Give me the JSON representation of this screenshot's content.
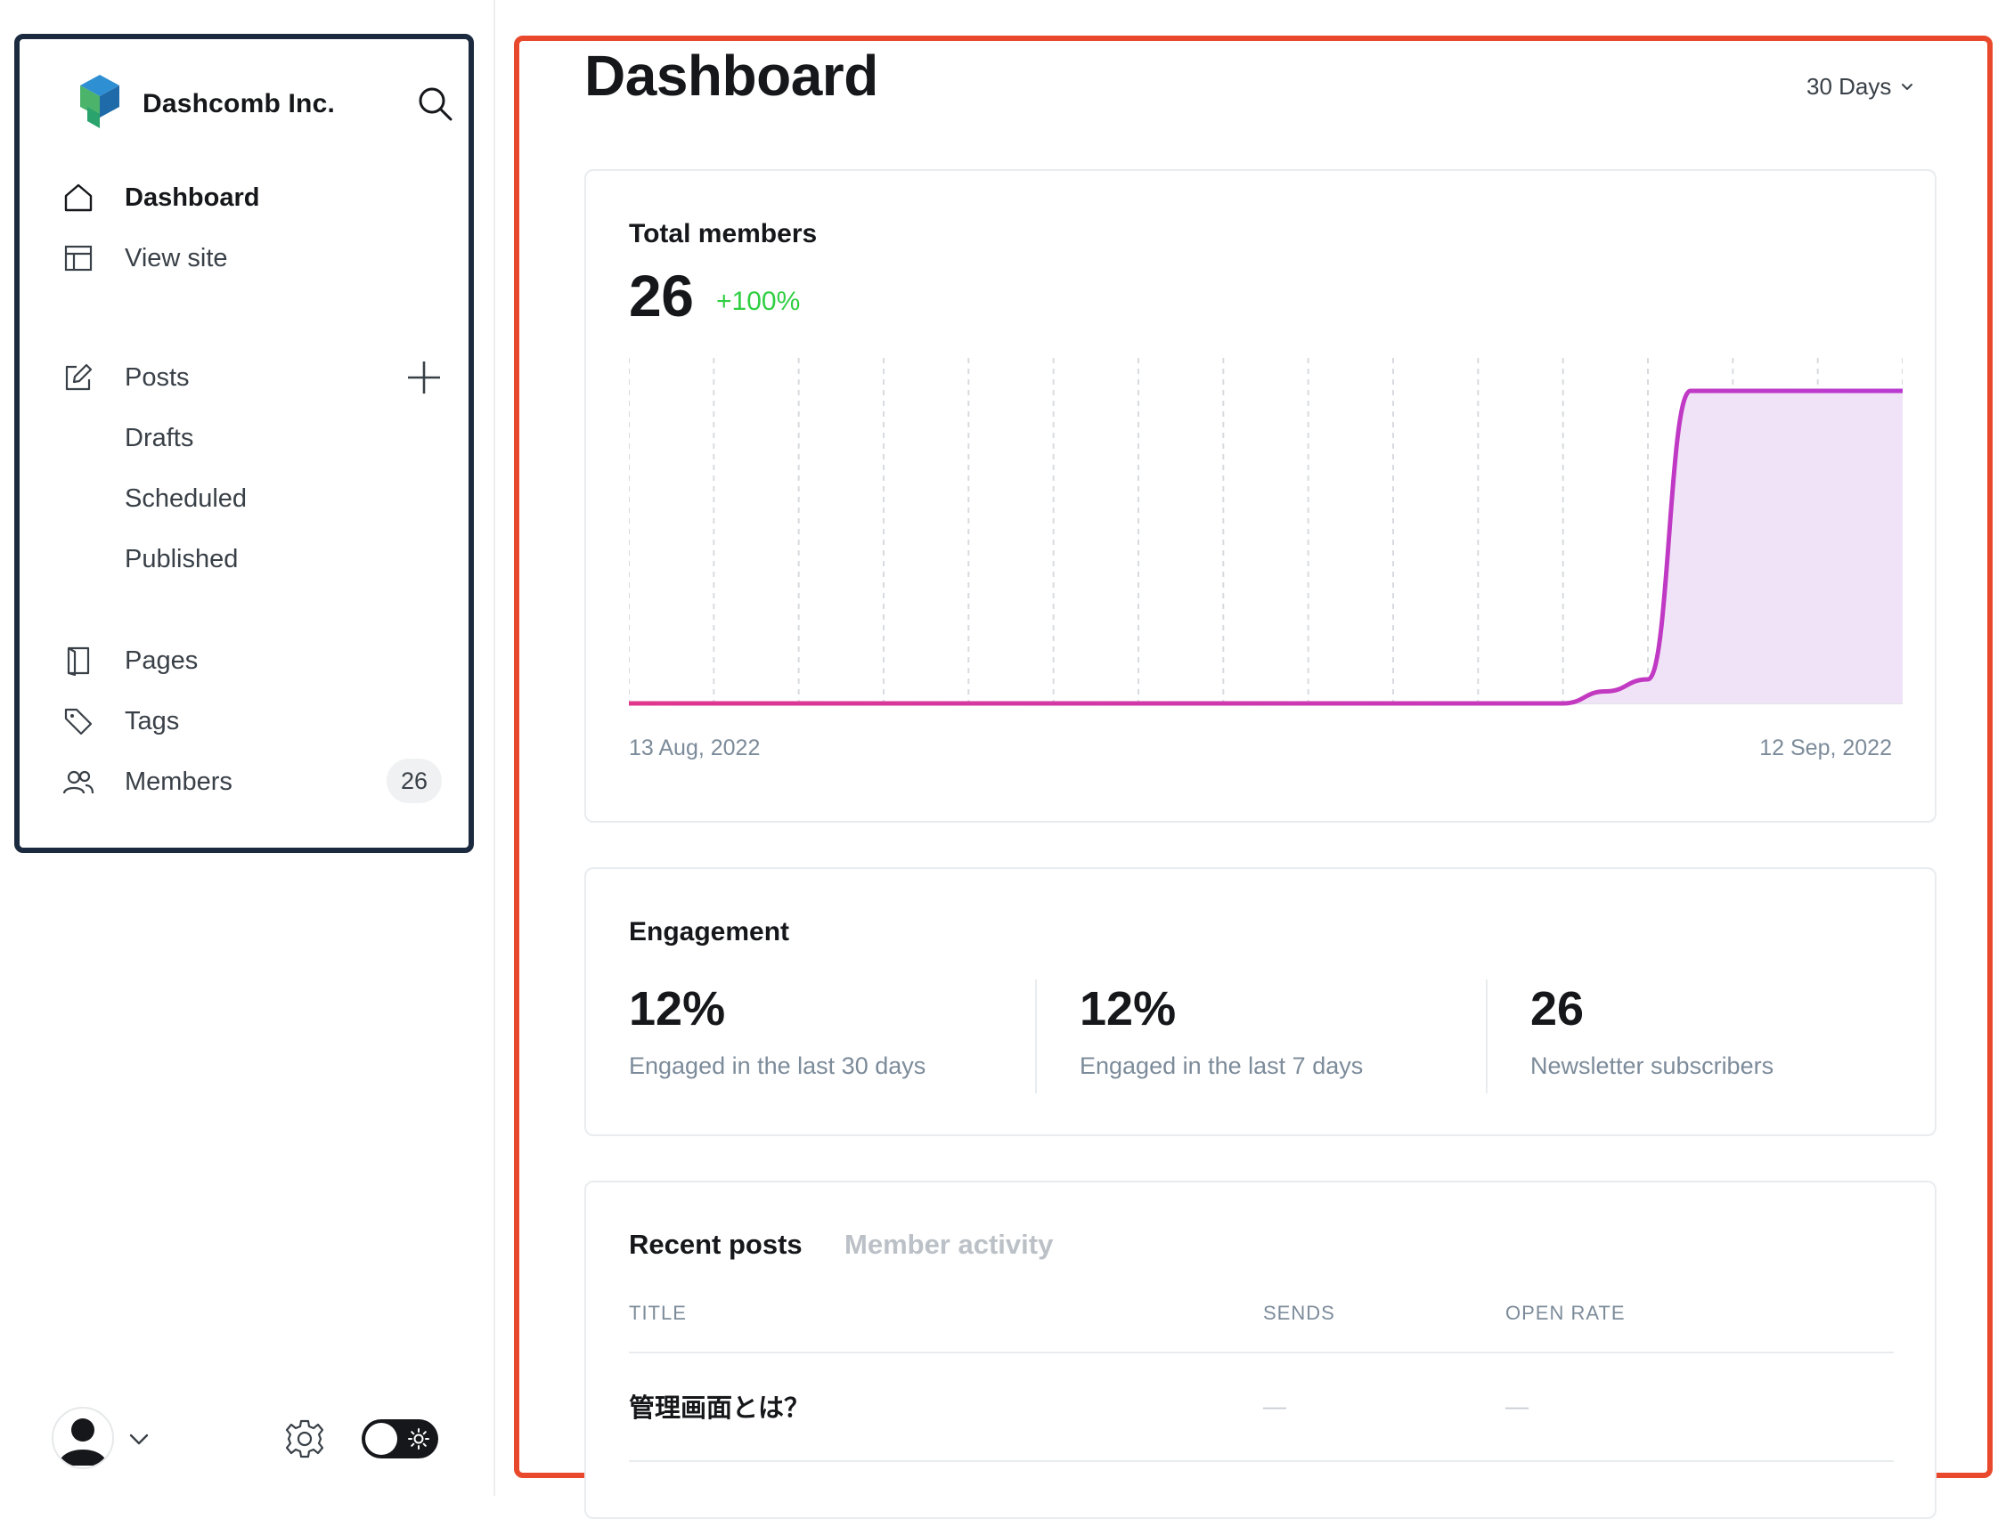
{
  "brand": {
    "name": "Dashcomb Inc."
  },
  "nav": {
    "dashboard": "Dashboard",
    "view_site": "View site",
    "posts": "Posts",
    "drafts": "Drafts",
    "scheduled": "Scheduled",
    "published": "Published",
    "pages": "Pages",
    "tags": "Tags",
    "members": "Members",
    "members_count": "26"
  },
  "icons": [
    "search-icon",
    "home-icon",
    "layout-icon",
    "pencil-square-icon",
    "plus-icon",
    "book-icon",
    "tag-icon",
    "users-icon",
    "user-avatar-icon",
    "chevron-down-icon",
    "gear-icon",
    "sun-icon"
  ],
  "colors": {
    "frame_dark": "#1b2a3e",
    "frame_red": "#e8492c",
    "accent_purple": "#b93ad1",
    "accent_pink": "#e0368c",
    "growth_green": "#30cf43"
  },
  "header": {
    "title": "Dashboard",
    "range": "30 Days"
  },
  "members_card": {
    "title": "Total members",
    "value": "26",
    "growth": "+100%",
    "date_start": "13 Aug, 2022",
    "date_end": "12 Sep, 2022"
  },
  "chart_data": {
    "type": "area",
    "title": "Total members",
    "xlabel": "",
    "ylabel": "",
    "x": [
      "2022-08-13",
      "2022-08-14",
      "2022-08-15",
      "2022-08-16",
      "2022-08-17",
      "2022-08-18",
      "2022-08-19",
      "2022-08-20",
      "2022-08-21",
      "2022-08-22",
      "2022-08-23",
      "2022-08-24",
      "2022-08-25",
      "2022-08-26",
      "2022-08-27",
      "2022-08-28",
      "2022-08-29",
      "2022-08-30",
      "2022-08-31",
      "2022-09-01",
      "2022-09-02",
      "2022-09-03",
      "2022-09-04",
      "2022-09-05",
      "2022-09-06",
      "2022-09-07",
      "2022-09-08",
      "2022-09-09",
      "2022-09-10",
      "2022-09-11",
      "2022-09-12"
    ],
    "series": [
      {
        "values": [
          0,
          0,
          0,
          0,
          0,
          0,
          0,
          0,
          0,
          0,
          0,
          0,
          0,
          0,
          0,
          0,
          0,
          0,
          0,
          0,
          0,
          0,
          0,
          1,
          2,
          26,
          26,
          26,
          26,
          26,
          26
        ]
      }
    ],
    "ylim": [
      0,
      28
    ],
    "grid": "vertical-dashed",
    "legend": "none"
  },
  "engagement": {
    "title": "Engagement",
    "items": [
      {
        "value": "12%",
        "label": "Engaged in the last 30 days"
      },
      {
        "value": "12%",
        "label": "Engaged in the last 7 days"
      },
      {
        "value": "26",
        "label": "Newsletter subscribers"
      }
    ]
  },
  "posts_card": {
    "tabs": [
      "Recent posts",
      "Member activity"
    ],
    "columns": [
      "TITLE",
      "SENDS",
      "OPEN RATE"
    ],
    "rows": [
      {
        "title": "管理画面とは？",
        "sends": "—",
        "open_rate": "—"
      }
    ]
  }
}
